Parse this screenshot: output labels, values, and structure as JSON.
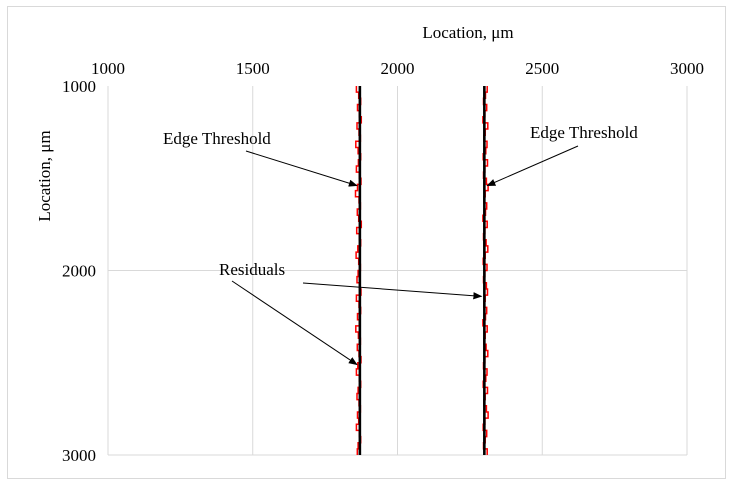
{
  "chart_data": {
    "type": "line",
    "title": "",
    "xlabel": "Location, μm",
    "ylabel": "Location, μm",
    "x_axis_position": "top",
    "y_axis_inverted": true,
    "xlim": [
      1000,
      3000
    ],
    "ylim": [
      1000,
      3000
    ],
    "xticks": [
      "1000",
      "1500",
      "2000",
      "2500",
      "3000"
    ],
    "yticks": [
      "1000",
      "2000",
      "3000"
    ],
    "grid": true,
    "legend": "none",
    "colors": {
      "edge": "#000000",
      "residual": "#ff0000",
      "grid": "#d9d9d9"
    },
    "series": [
      {
        "kind": "edge",
        "points": [
          [
            1870,
            1000
          ],
          [
            1870,
            3000
          ]
        ]
      },
      {
        "kind": "edge",
        "points": [
          [
            2300,
            1000
          ],
          [
            2300,
            3000
          ]
        ]
      },
      {
        "kind": "residual",
        "center": 1870,
        "offsets": [
          -12,
          -4,
          3,
          -8,
          -2,
          5,
          -10,
          -3,
          2,
          -14,
          -6,
          3,
          -5,
          -12,
          -2,
          4,
          -8,
          -15,
          -3,
          2,
          -9,
          -4,
          5,
          -11,
          -2,
          3,
          -7,
          -13,
          -4,
          2,
          -6,
          -10,
          -1,
          4,
          -12,
          -3,
          3,
          -8,
          -2,
          -14,
          -5,
          2,
          -9,
          -3,
          4,
          -7,
          -12,
          -2,
          3,
          -6,
          -10,
          -3,
          2,
          -8,
          -4,
          -12,
          -2,
          3,
          -6,
          -9
        ]
      },
      {
        "kind": "residual",
        "center": 2300,
        "offsets": [
          10,
          4,
          -3,
          8,
          2,
          -5,
          12,
          3,
          -2,
          9,
          5,
          -4,
          11,
          2,
          -3,
          7,
          13,
          3,
          -2,
          8,
          4,
          -5,
          10,
          2,
          -3,
          6,
          12,
          3,
          -4,
          9,
          2,
          -3,
          7,
          11,
          3,
          -2,
          8,
          4,
          -5,
          10,
          3,
          -2,
          6,
          12,
          2,
          -3,
          9,
          5,
          -4,
          11,
          3,
          -2,
          7,
          13,
          2,
          -4,
          8,
          3,
          -3,
          10
        ]
      }
    ],
    "annotations": [
      {
        "text": "Edge Threshold",
        "target": [
          1860,
          1540
        ]
      },
      {
        "text": "Edge Threshold",
        "target": [
          2310,
          1540
        ]
      },
      {
        "text": "Residuals",
        "target": [
          1860,
          2510
        ]
      },
      {
        "text": "Residuals",
        "target": [
          2290,
          2140
        ]
      }
    ]
  }
}
